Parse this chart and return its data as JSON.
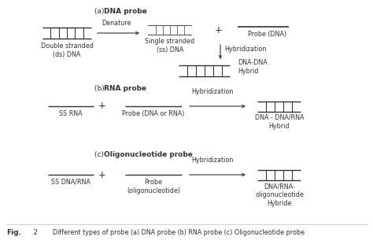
{
  "fig_width": 4.74,
  "fig_height": 3.1,
  "dpi": 100,
  "bg_color": "#ffffff",
  "line_color": "#333333",
  "text_color": "#333333",
  "labels": {
    "a_prefix": "(a) ",
    "a_bold": "DNA probe",
    "b_prefix": "(b) ",
    "b_bold": "RNA probe",
    "c_prefix": "(c) ",
    "c_bold": "Oligonucleotide probe",
    "double_stranded": "Double stranded\n(ds) DNA",
    "denature": "Denature",
    "single_stranded": "Single stranded\n(ss) DNA",
    "probe_dna": "Probe (DNA)",
    "hybridization_a": "Hybridization",
    "dna_dna_hybrid": "DNA-DNA\nHybrid",
    "ss_rna": "SS RNA",
    "probe_dna_or_rna": "Probe (DNA or RNA)",
    "hybridization_b": "Hybridization",
    "dna_rna_hybrid": "DNA - DNA/RNA\nHybrid",
    "ss_dna_rna": "SS DNA/RNA",
    "probe_oligo": "Probe\n(oligonucleotide)",
    "hybridization_c": "Hybridization",
    "dna_rna_oligo_hybrid": "DNA/RNA-\noligonucleotide\nHybride",
    "fig_bold": "Fig.",
    "fig_num": "    .2",
    "fig_rest": "  Different types of probe (a) DNA probe (b) RNA probe (c) Oligonucleotide probe"
  }
}
